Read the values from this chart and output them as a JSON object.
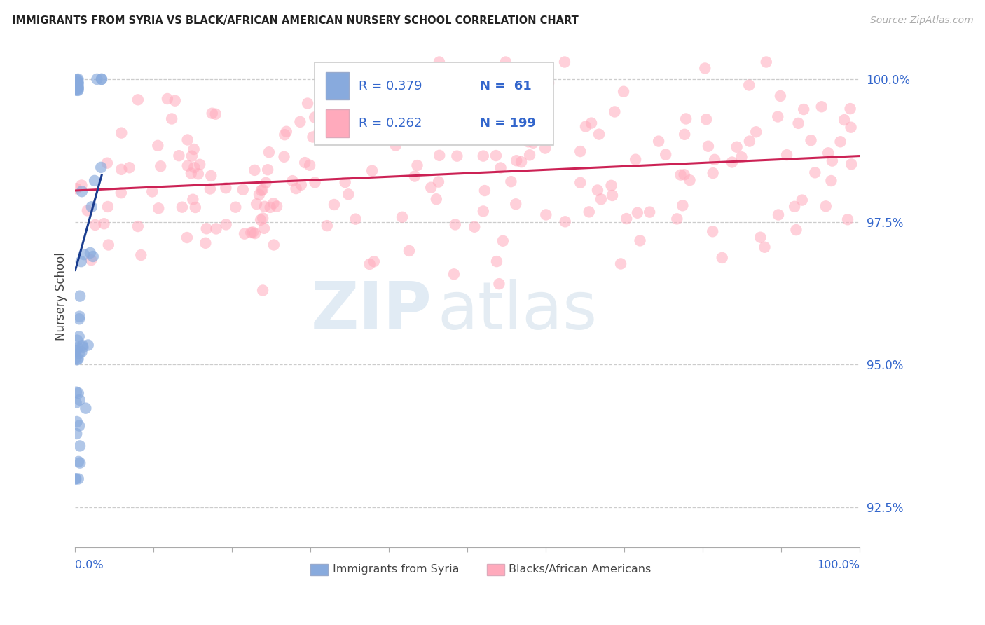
{
  "title": "IMMIGRANTS FROM SYRIA VS BLACK/AFRICAN AMERICAN NURSERY SCHOOL CORRELATION CHART",
  "source": "Source: ZipAtlas.com",
  "ylabel": "Nursery School",
  "legend_r1": "R = 0.379",
  "legend_n1": "N =  61",
  "legend_r2": "R = 0.262",
  "legend_n2": "N = 199",
  "ytick_labels": [
    "100.0%",
    "97.5%",
    "95.0%",
    "92.5%"
  ],
  "ytick_values": [
    1.0,
    0.975,
    0.95,
    0.925
  ],
  "blue_scatter_color": "#88aadd",
  "pink_scatter_color": "#ffaabc",
  "blue_line_color": "#1a3d8f",
  "pink_line_color": "#cc2255",
  "legend_text_color": "#3366cc",
  "background_color": "#ffffff",
  "grid_color": "#cccccc",
  "xlim": [
    0.0,
    1.0
  ],
  "ylim": [
    0.918,
    1.006
  ],
  "xtick_positions": [
    0.0,
    0.1,
    0.2,
    0.3,
    0.4,
    0.5,
    0.6,
    0.7,
    0.8,
    0.9,
    1.0
  ]
}
